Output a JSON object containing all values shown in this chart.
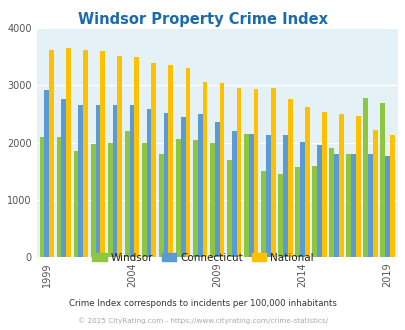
{
  "title": "Windsor Property Crime Index",
  "title_color": "#1a6aaf",
  "subtitle": "Crime Index corresponds to incidents per 100,000 inhabitants",
  "footer": "© 2025 CityRating.com - https://www.cityrating.com/crime-statistics/",
  "years": [
    1999,
    2000,
    2001,
    2002,
    2003,
    2004,
    2005,
    2006,
    2007,
    2008,
    2009,
    2010,
    2011,
    2012,
    2013,
    2014,
    2015,
    2016,
    2017,
    2018,
    2019
  ],
  "windsor": [
    2100,
    2100,
    1860,
    1980,
    2000,
    2200,
    2000,
    1800,
    2060,
    2050,
    2000,
    1700,
    2160,
    1500,
    1450,
    1580,
    1600,
    1900,
    1800,
    2780,
    2700
  ],
  "connecticut": [
    2920,
    2760,
    2660,
    2650,
    2650,
    2660,
    2580,
    2520,
    2440,
    2500,
    2370,
    2200,
    2160,
    2140,
    2130,
    2010,
    1960,
    1810,
    1810,
    1800,
    1770
  ],
  "national": [
    3620,
    3650,
    3620,
    3600,
    3520,
    3490,
    3390,
    3360,
    3300,
    3060,
    3040,
    2960,
    2940,
    2960,
    2760,
    2620,
    2530,
    2500,
    2470,
    2220,
    2130
  ],
  "windsor_color": "#8dc63f",
  "connecticut_color": "#5b9bd5",
  "national_color": "#ffc000",
  "bg_color": "#e4f1f7",
  "ylim": [
    0,
    4000
  ],
  "yticks": [
    0,
    1000,
    2000,
    3000,
    4000
  ],
  "tick_years": [
    1999,
    2004,
    2009,
    2014,
    2019
  ],
  "bar_width": 0.28,
  "figsize": [
    4.06,
    3.3
  ],
  "dpi": 100
}
